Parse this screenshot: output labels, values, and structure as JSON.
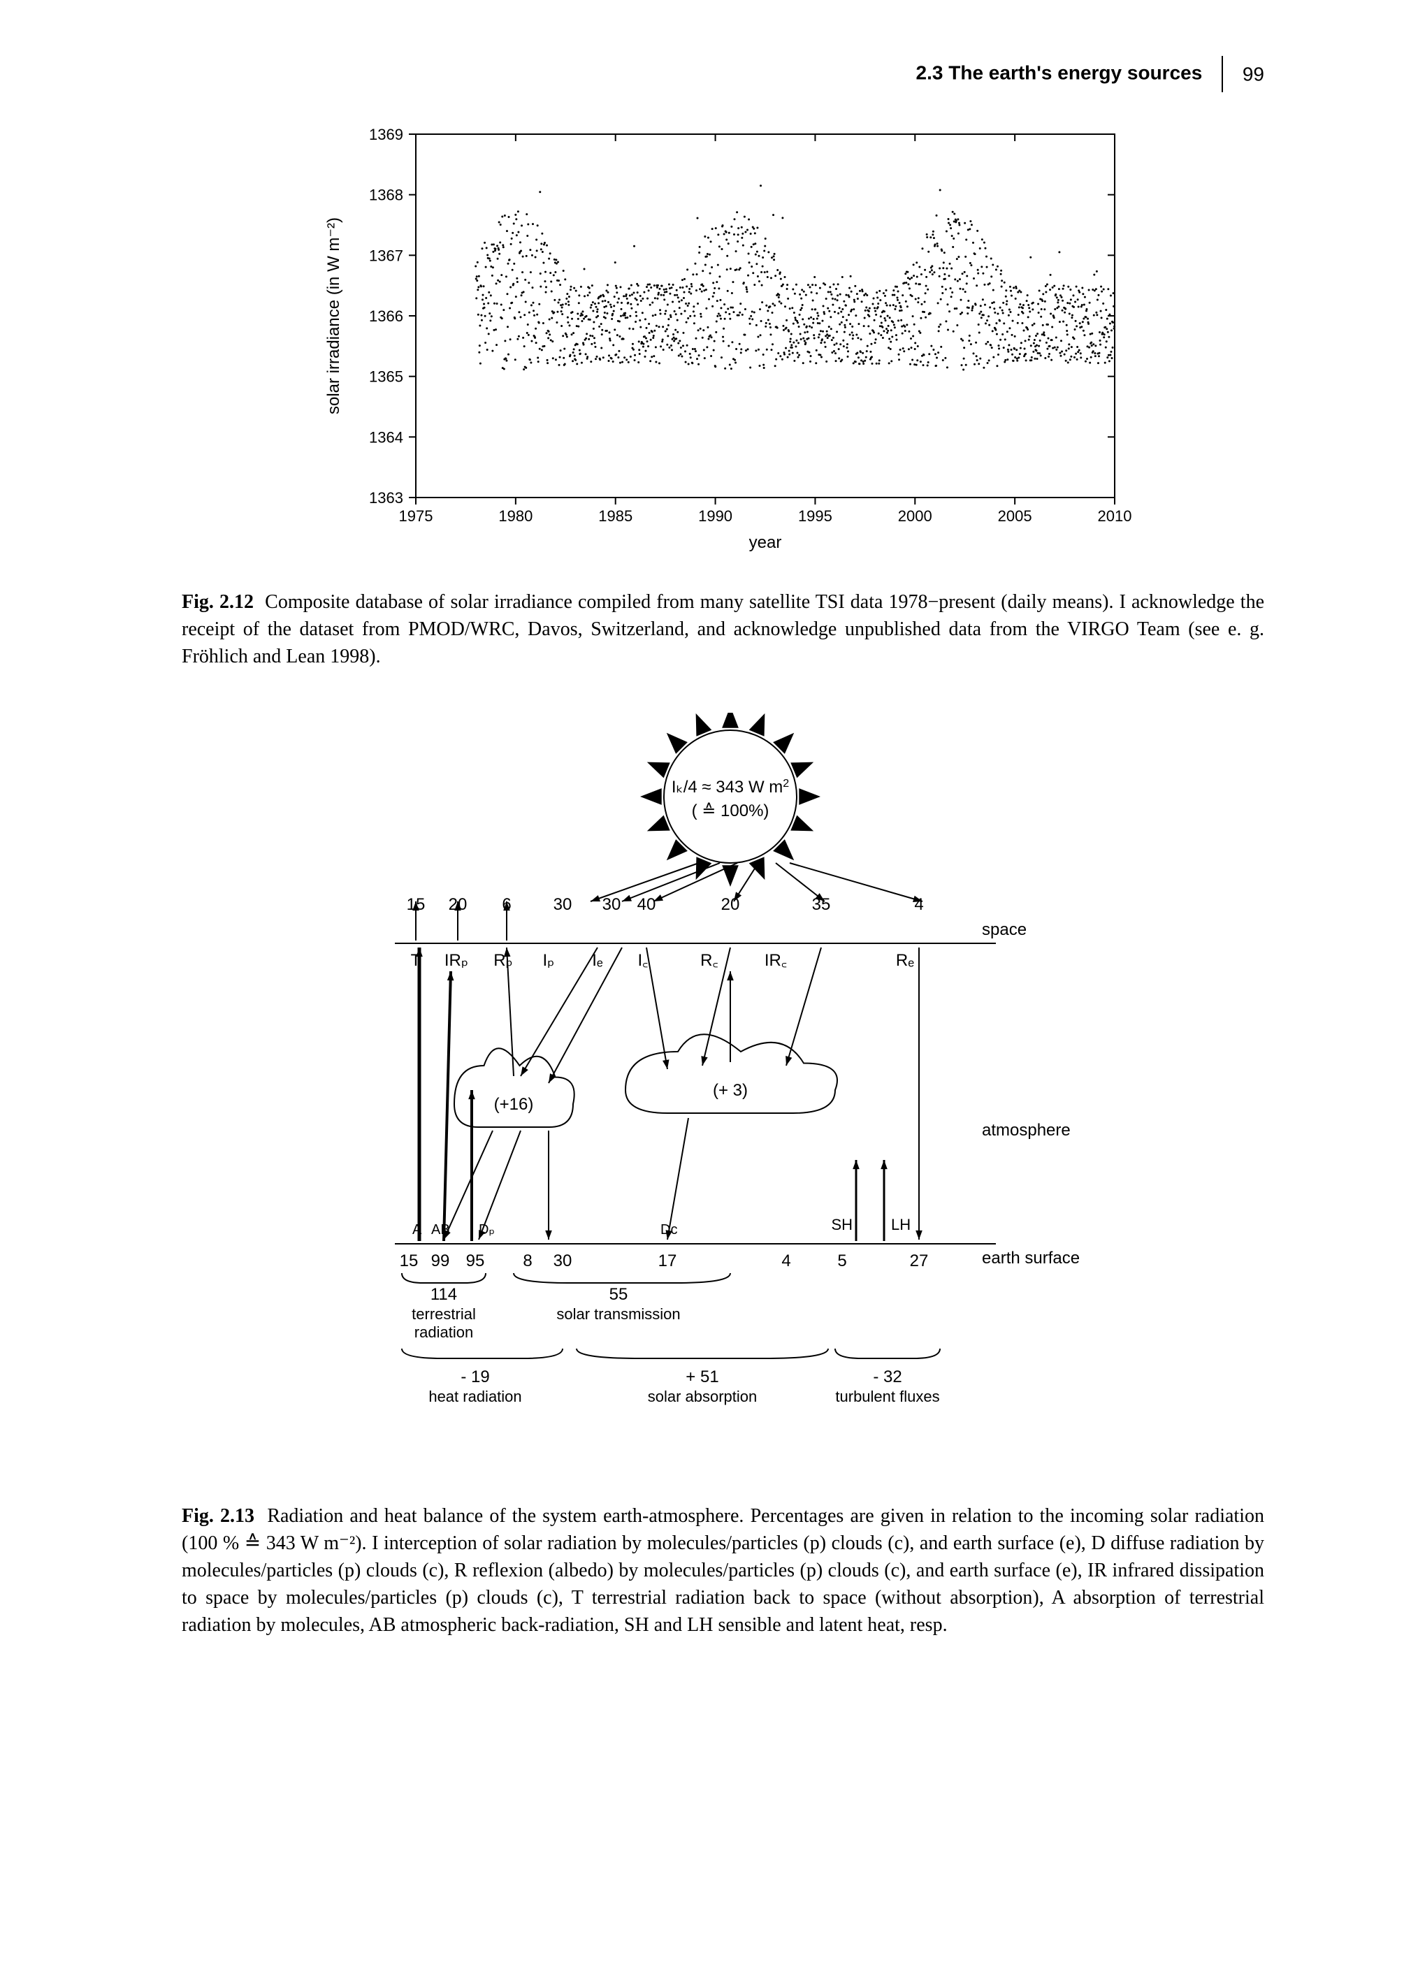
{
  "header": {
    "section": "2.3 The earth's energy sources",
    "page": "99"
  },
  "fig212": {
    "ylabel": "solar irradiance (in W m⁻²)",
    "xlabel": "year",
    "xlim": [
      1975,
      2010
    ],
    "ylim": [
      1363,
      1369
    ],
    "xticks": [
      1975,
      1980,
      1985,
      1990,
      1995,
      2000,
      2005,
      2010
    ],
    "yticks": [
      1363,
      1364,
      1365,
      1366,
      1367,
      1368,
      1369
    ],
    "points_seed_note": "scatter replicates 11-yr solar cycle, ~1365.5 base rising to ~1367",
    "axis_color": "#000000",
    "tick_fontsize": 22,
    "label_fontsize": 24,
    "marker_size": 1.5,
    "marker_color": "#000000"
  },
  "caption212": {
    "label": "Fig. 2.12",
    "text": "Composite database of solar irradiance compiled from many satellite TSI data 1978−present (daily means). I acknowledge the receipt of the dataset from PMOD/WRC, Davos, Switzerland, and acknowledge unpublished data from the VIRGO Team (see e. g. Fröhlich and Lean 1998)."
  },
  "fig213": {
    "sun_label1": "Iₖ/4 ≈ 343 W m",
    "sun_label_sup": "2",
    "sun_label2": "( ≙ 100%)",
    "top_values": [
      "15",
      "20",
      "6",
      "30",
      "30",
      "40",
      "20",
      "35",
      "4"
    ],
    "top_letters": [
      "T",
      "IRₚ",
      "Rₚ",
      "Iₚ",
      "Iₑ",
      "I꜀",
      "R꜀",
      "IR꜀",
      "Rₑ"
    ],
    "cloud_left": "(+16)",
    "cloud_right": "(+ 3)",
    "bottom_letters": [
      "A",
      "AB",
      "Dₚ",
      "",
      "D꜀",
      "",
      "SH",
      "LH"
    ],
    "bottom_values": [
      "15",
      "99",
      "95",
      "8",
      "30",
      "17",
      "4",
      "5",
      "27"
    ],
    "zone_labels": {
      "space": "space",
      "atmosphere": "atmosphere",
      "earth": "earth surface"
    },
    "sum_labels": {
      "terr_num": "114",
      "terr_text": "terrestrial radiation",
      "solar_num": "55",
      "solar_text": "solar transmission",
      "heat_num": "- 19",
      "heat_text": "heat radiation",
      "abs_num": "+ 51",
      "abs_text": "solar absorption",
      "turb_num": "- 32",
      "turb_text": "turbulent fluxes"
    },
    "line_color": "#000000",
    "fontsize": 24
  },
  "caption213": {
    "label": "Fig. 2.13",
    "text": "Radiation and heat balance of the system earth-atmosphere. Percentages are given in relation to the incoming solar radiation (100 % ≙ 343 W m⁻²). I interception of solar radiation by molecules/particles (p) clouds (c), and earth surface (e), D diffuse radiation by molecules/particles (p) clouds (c), R reflexion (albedo) by molecules/particles (p) clouds (c), and earth surface (e), IR infrared dissipation to space by molecules/particles (p) clouds (c), T terrestrial radiation back to space (without absorption), A absorption of terrestrial radiation by molecules, AB atmospheric back-radiation, SH and LH sensible and latent heat, resp."
  }
}
